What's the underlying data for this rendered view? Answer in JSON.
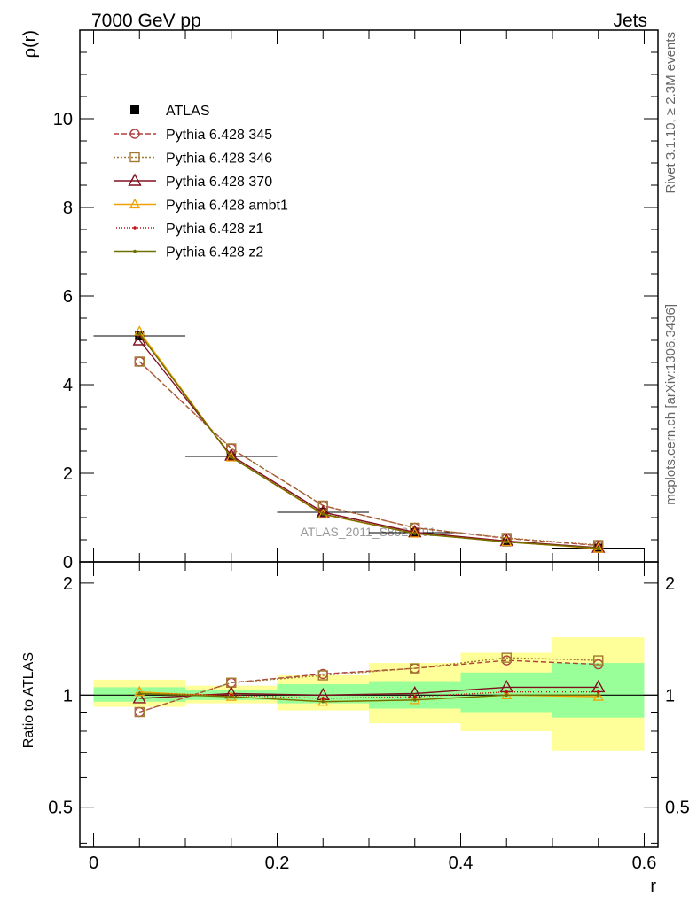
{
  "chart_data": {
    "type": "line",
    "header": {
      "left": "7000 GeV pp",
      "right": "Jets"
    },
    "side_labels": {
      "rivet": "Rivet 3.1.10, ≥ 2.3M events",
      "mcplots": "mcplots.cern.ch [arXiv:1306.3436]"
    },
    "watermark": "ATLAS_2011_S8924791",
    "xlabel": "r",
    "xlim": [
      -0.015,
      0.615
    ],
    "x_ticks": [
      0,
      0.2,
      0.4,
      0.6
    ],
    "x_tick_labels": [
      "0",
      "0.2",
      "0.4",
      "0.6"
    ],
    "x": [
      0.05,
      0.15,
      0.25,
      0.35,
      0.45,
      0.55
    ],
    "bin_edges": [
      0,
      0.1,
      0.2,
      0.3,
      0.4,
      0.5,
      0.6
    ],
    "top": {
      "ylabel": "ρ(r)",
      "ylim": [
        0,
        12
      ],
      "y_ticks": [
        0,
        2,
        4,
        6,
        8,
        10
      ],
      "y_tick_labels": [
        "0",
        "2",
        "4",
        "6",
        "8",
        "10"
      ],
      "data": {
        "name": "ATLAS",
        "values": [
          5.1,
          2.38,
          1.12,
          0.66,
          0.45,
          0.31
        ]
      },
      "series": [
        {
          "name": "Pythia 6.428 345",
          "color": "#b04040",
          "dash": "6,3",
          "marker": "circle",
          "values": [
            4.52,
            2.56,
            1.27,
            0.77,
            0.53,
            0.37
          ]
        },
        {
          "name": "Pythia 6.428 346",
          "color": "#a07830",
          "dash": "2,2",
          "marker": "square",
          "values": [
            4.52,
            2.56,
            1.27,
            0.77,
            0.54,
            0.38
          ]
        },
        {
          "name": "Pythia 6.428 370",
          "color": "#801020",
          "dash": "",
          "marker": "triangle",
          "values": [
            5.0,
            2.4,
            1.12,
            0.67,
            0.47,
            0.32
          ]
        },
        {
          "name": "Pythia 6.428 ambt1",
          "color": "#f0a000",
          "dash": "",
          "marker": "triangle-small",
          "values": [
            5.2,
            2.36,
            1.07,
            0.64,
            0.45,
            0.3
          ]
        },
        {
          "name": "Pythia 6.428 z1",
          "color": "#c01010",
          "dash": "1,2",
          "marker": "dot",
          "values": [
            5.15,
            2.37,
            1.09,
            0.65,
            0.45,
            0.31
          ]
        },
        {
          "name": "Pythia 6.428 z2",
          "color": "#707000",
          "dash": "",
          "marker": "dot",
          "values": [
            5.15,
            2.36,
            1.08,
            0.64,
            0.45,
            0.31
          ]
        }
      ]
    },
    "bottom": {
      "ylabel": "Ratio to ATLAS",
      "ylim": [
        0.39,
        2.28
      ],
      "y_ticks": [
        0.5,
        1,
        2
      ],
      "y_tick_labels": [
        "0.5",
        "1",
        "2"
      ],
      "log_scale": true,
      "band_inner": [
        [
          0.96,
          1.05
        ],
        [
          0.97,
          1.03
        ],
        [
          0.95,
          1.07
        ],
        [
          0.92,
          1.09
        ],
        [
          0.9,
          1.15
        ],
        [
          0.87,
          1.22
        ]
      ],
      "band_outer": [
        [
          0.93,
          1.1
        ],
        [
          0.95,
          1.06
        ],
        [
          0.91,
          1.13
        ],
        [
          0.84,
          1.22
        ],
        [
          0.8,
          1.3
        ],
        [
          0.71,
          1.43
        ]
      ],
      "series": [
        {
          "name": "Pythia 6.428 345",
          "values": [
            0.9,
            1.08,
            1.14,
            1.18,
            1.24,
            1.21
          ]
        },
        {
          "name": "Pythia 6.428 346",
          "values": [
            0.9,
            1.08,
            1.13,
            1.18,
            1.26,
            1.24
          ]
        },
        {
          "name": "Pythia 6.428 370",
          "values": [
            0.98,
            1.01,
            1.0,
            1.01,
            1.05,
            1.05
          ]
        },
        {
          "name": "Pythia 6.428 ambt1",
          "values": [
            1.02,
            0.99,
            0.96,
            0.97,
            1.0,
            0.99
          ]
        },
        {
          "name": "Pythia 6.428 z1",
          "values": [
            1.01,
            1.0,
            0.98,
            0.99,
            1.02,
            1.02
          ]
        },
        {
          "name": "Pythia 6.428 z2",
          "values": [
            1.01,
            0.99,
            0.96,
            0.97,
            1.0,
            1.0
          ]
        }
      ]
    }
  }
}
